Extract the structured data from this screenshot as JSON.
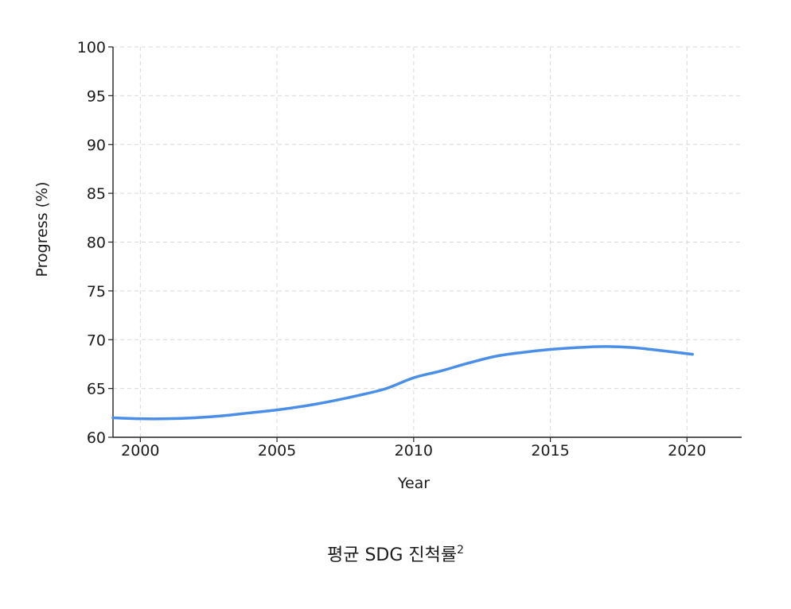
{
  "chart_data": {
    "type": "line",
    "title": "",
    "xlabel": "Year",
    "ylabel": "Progress (%)",
    "xlim": [
      1999,
      2022
    ],
    "ylim": [
      60,
      100
    ],
    "x_ticks": [
      "2000",
      "2005",
      "2010",
      "2015",
      "2020"
    ],
    "y_ticks": [
      "60",
      "65",
      "70",
      "75",
      "80",
      "85",
      "90",
      "95",
      "100"
    ],
    "grid": true,
    "line_color": "#4a8ee8",
    "x": [
      1999,
      2000,
      2001,
      2002,
      2003,
      2004,
      2005,
      2006,
      2007,
      2008,
      2009,
      2010,
      2011,
      2012,
      2013,
      2014,
      2015,
      2016,
      2017,
      2018,
      2019,
      2020.2
    ],
    "values": [
      62.0,
      61.9,
      61.9,
      62.0,
      62.2,
      62.5,
      62.8,
      63.2,
      63.7,
      64.3,
      65.0,
      66.1,
      66.8,
      67.6,
      68.3,
      68.7,
      69.0,
      69.2,
      69.3,
      69.2,
      68.9,
      68.5
    ]
  },
  "caption": {
    "text": "평균 SDG 진척률",
    "superscript": "2"
  }
}
